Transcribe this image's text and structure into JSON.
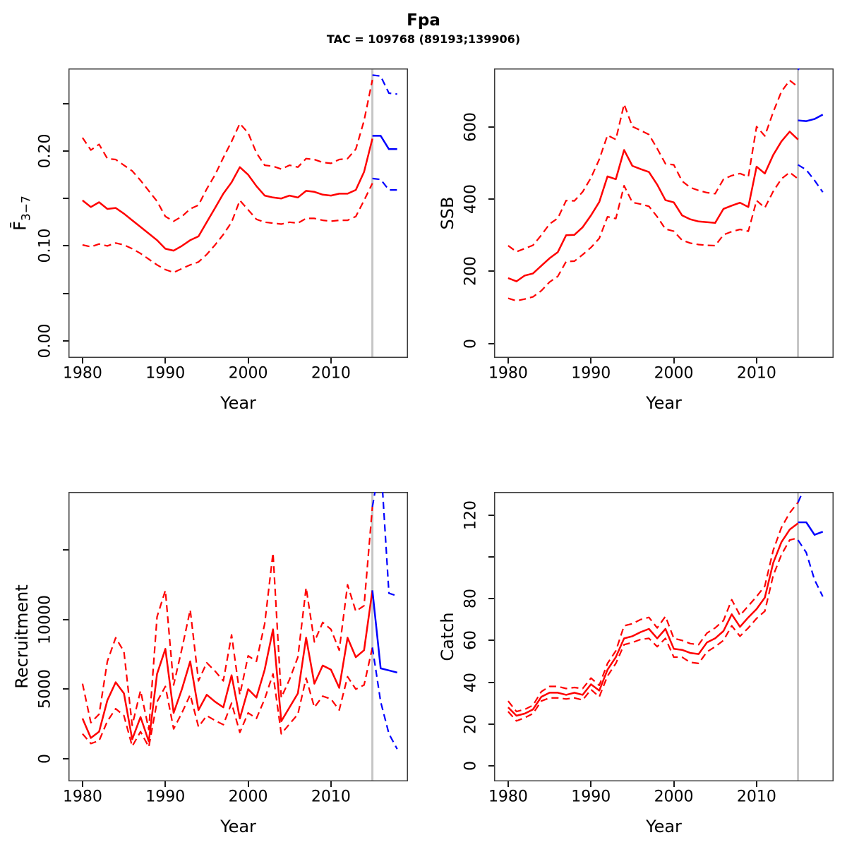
{
  "title": "Fpa",
  "subtitle": "TAC = 109768 (89193;139906)",
  "x_axis_label": "Year",
  "forecast_start_year": 2015,
  "colors": {
    "median": "#ff0000",
    "ci": "#ff0000",
    "forecast": "#0000ff",
    "vline": "#c6c6c6",
    "box": "#3c3c3c",
    "tick": "#1a1a1a"
  },
  "chart_data": [
    {
      "type": "line",
      "name": "fbar",
      "ylabel": "F̄",
      "ylabel_sub": "3−7",
      "xlabel": "Year",
      "xlim": [
        1978.3,
        2019.3
      ],
      "ylim": [
        -0.018,
        0.287
      ],
      "grid": false,
      "legend": false,
      "vline_x": 2015,
      "xticks": [
        {
          "v": 1980,
          "label": "1980"
        },
        {
          "v": 1990,
          "label": "1990"
        },
        {
          "v": 2000,
          "label": "2000"
        },
        {
          "v": 2010,
          "label": "2010"
        }
      ],
      "yticks": [
        {
          "v": 0,
          "label": "0.00"
        },
        {
          "v": 0.05,
          "label": ""
        },
        {
          "v": 0.1,
          "label": "0.10"
        },
        {
          "v": 0.15,
          "label": ""
        },
        {
          "v": 0.2,
          "label": "0.20"
        },
        {
          "v": 0.25,
          "label": ""
        }
      ],
      "years": [
        1980,
        1981,
        1982,
        1983,
        1984,
        1985,
        1986,
        1987,
        1988,
        1989,
        1990,
        1991,
        1992,
        1993,
        1994,
        1995,
        1996,
        1997,
        1998,
        1999,
        2000,
        2001,
        2002,
        2003,
        2004,
        2005,
        2006,
        2007,
        2008,
        2009,
        2010,
        2011,
        2012,
        2013,
        2014,
        2015
      ],
      "forecast_years": [
        2015,
        2016,
        2017,
        2018
      ],
      "series": [
        {
          "name": "ci-upper",
          "phase": "hist",
          "style": "dashed",
          "color": "ci",
          "values": [
            0.214,
            0.201,
            0.207,
            0.192,
            0.191,
            0.185,
            0.179,
            0.169,
            0.158,
            0.147,
            0.131,
            0.126,
            0.131,
            0.139,
            0.143,
            0.16,
            0.175,
            0.193,
            0.21,
            0.229,
            0.219,
            0.198,
            0.185,
            0.184,
            0.181,
            0.185,
            0.183,
            0.192,
            0.191,
            0.188,
            0.187,
            0.191,
            0.192,
            0.202,
            0.232,
            0.275
          ]
        },
        {
          "name": "ci-lower",
          "phase": "hist",
          "style": "dashed",
          "color": "ci",
          "values": [
            0.101,
            0.099,
            0.102,
            0.1,
            0.103,
            0.101,
            0.097,
            0.092,
            0.086,
            0.08,
            0.075,
            0.072,
            0.076,
            0.08,
            0.083,
            0.091,
            0.101,
            0.112,
            0.125,
            0.148,
            0.138,
            0.128,
            0.125,
            0.124,
            0.123,
            0.125,
            0.124,
            0.129,
            0.129,
            0.127,
            0.126,
            0.127,
            0.127,
            0.131,
            0.148,
            0.166
          ]
        },
        {
          "name": "median",
          "phase": "hist",
          "style": "solid",
          "color": "median",
          "values": [
            0.148,
            0.141,
            0.146,
            0.139,
            0.14,
            0.134,
            0.127,
            0.12,
            0.113,
            0.106,
            0.097,
            0.095,
            0.1,
            0.106,
            0.11,
            0.125,
            0.14,
            0.155,
            0.167,
            0.183,
            0.175,
            0.163,
            0.153,
            0.151,
            0.15,
            0.153,
            0.151,
            0.158,
            0.157,
            0.154,
            0.153,
            0.155,
            0.155,
            0.159,
            0.178,
            0.213
          ]
        },
        {
          "name": "forecast-ci-upper",
          "phase": "forecast",
          "style": "dashed",
          "color": "forecast",
          "values": [
            0.28,
            0.279,
            0.261,
            0.26
          ]
        },
        {
          "name": "forecast-ci-lower",
          "phase": "forecast",
          "style": "dashed",
          "color": "forecast",
          "values": [
            0.171,
            0.17,
            0.159,
            0.159
          ]
        },
        {
          "name": "forecast-median",
          "phase": "forecast",
          "style": "solid",
          "color": "forecast",
          "values": [
            0.216,
            0.216,
            0.202,
            0.202
          ]
        }
      ]
    },
    {
      "type": "line",
      "name": "ssb",
      "ylabel": "SSB",
      "ylabel_sub": "",
      "xlabel": "Year",
      "xlim": [
        1978.3,
        2019.3
      ],
      "ylim": [
        -40,
        762
      ],
      "grid": false,
      "legend": false,
      "vline_x": 2015,
      "xticks": [
        {
          "v": 1980,
          "label": "1980"
        },
        {
          "v": 1990,
          "label": "1990"
        },
        {
          "v": 2000,
          "label": "2000"
        },
        {
          "v": 2010,
          "label": "2010"
        }
      ],
      "yticks": [
        {
          "v": 0,
          "label": "0"
        },
        {
          "v": 200,
          "label": "200"
        },
        {
          "v": 400,
          "label": "400"
        },
        {
          "v": 600,
          "label": "600"
        }
      ],
      "years": [
        1980,
        1981,
        1982,
        1983,
        1984,
        1985,
        1986,
        1987,
        1988,
        1989,
        1990,
        1991,
        1992,
        1993,
        1994,
        1995,
        1996,
        1997,
        1998,
        1999,
        2000,
        2001,
        2002,
        2003,
        2004,
        2005,
        2006,
        2007,
        2008,
        2009,
        2010,
        2011,
        2012,
        2013,
        2014,
        2015
      ],
      "forecast_years": [
        2015,
        2016,
        2017,
        2018
      ],
      "series": [
        {
          "name": "ci-upper",
          "phase": "hist",
          "style": "dashed",
          "color": "ci",
          "values": [
            271,
            254,
            263,
            272,
            300,
            331,
            347,
            396,
            395,
            420,
            459,
            510,
            577,
            565,
            663,
            601,
            590,
            579,
            540,
            498,
            495,
            450,
            432,
            424,
            418,
            415,
            455,
            465,
            471,
            462,
            601,
            575,
            641,
            698,
            729,
            711
          ]
        },
        {
          "name": "ci-lower",
          "phase": "hist",
          "style": "dashed",
          "color": "ci",
          "values": [
            125,
            118,
            123,
            129,
            146,
            170,
            186,
            227,
            228,
            246,
            266,
            291,
            351,
            346,
            437,
            391,
            386,
            380,
            351,
            317,
            311,
            286,
            278,
            274,
            272,
            271,
            301,
            310,
            316,
            311,
            396,
            376,
            421,
            456,
            474,
            456
          ]
        },
        {
          "name": "median",
          "phase": "hist",
          "style": "solid",
          "color": "median",
          "values": [
            181,
            172,
            188,
            194,
            215,
            236,
            253,
            300,
            301,
            322,
            355,
            392,
            463,
            455,
            536,
            492,
            483,
            475,
            440,
            397,
            391,
            355,
            344,
            338,
            336,
            334,
            373,
            382,
            390,
            378,
            490,
            471,
            522,
            560,
            587,
            565
          ]
        },
        {
          "name": "forecast-ci-upper",
          "phase": "forecast",
          "style": "dashed",
          "color": "forecast",
          "values": [
            758,
            790,
            810,
            820
          ]
        },
        {
          "name": "forecast-ci-lower",
          "phase": "forecast",
          "style": "dashed",
          "color": "forecast",
          "values": [
            495,
            481,
            452,
            419
          ]
        },
        {
          "name": "forecast-median",
          "phase": "forecast",
          "style": "solid",
          "color": "forecast",
          "values": [
            618,
            616,
            622,
            634
          ]
        }
      ]
    },
    {
      "type": "line",
      "name": "recruitment",
      "ylabel": "Recruitment",
      "ylabel_sub": "",
      "xlabel": "Year",
      "xlim": [
        1978.3,
        2019.3
      ],
      "ylim": [
        -1620,
        19170
      ],
      "grid": false,
      "legend": false,
      "vline_x": 2015,
      "xticks": [
        {
          "v": 1980,
          "label": "1980"
        },
        {
          "v": 1990,
          "label": "1990"
        },
        {
          "v": 2000,
          "label": "2000"
        },
        {
          "v": 2010,
          "label": "2010"
        }
      ],
      "yticks": [
        {
          "v": 0,
          "label": "0"
        },
        {
          "v": 5000,
          "label": "5000"
        },
        {
          "v": 10000,
          "label": "10000"
        },
        {
          "v": 15000,
          "label": ""
        }
      ],
      "years": [
        1980,
        1981,
        1982,
        1983,
        1984,
        1985,
        1986,
        1987,
        1988,
        1989,
        1990,
        1991,
        1992,
        1993,
        1994,
        1995,
        1996,
        1997,
        1998,
        1999,
        2000,
        2001,
        2002,
        2003,
        2004,
        2005,
        2006,
        2007,
        2008,
        2009,
        2010,
        2011,
        2012,
        2013,
        2014,
        2015
      ],
      "forecast_years": [
        2015,
        2016,
        2017,
        2018
      ],
      "series": [
        {
          "name": "ci-upper",
          "phase": "hist",
          "style": "dashed",
          "color": "ci",
          "values": [
            5400,
            2600,
            3200,
            7000,
            8700,
            7700,
            2400,
            4900,
            2100,
            10200,
            12100,
            5300,
            7900,
            10700,
            5600,
            6900,
            6300,
            5600,
            8900,
            4600,
            7400,
            7000,
            9700,
            14800,
            4400,
            5700,
            7300,
            12300,
            8400,
            9800,
            9300,
            7800,
            12500,
            10600,
            11000,
            18100
          ]
        },
        {
          "name": "ci-lower",
          "phase": "hist",
          "style": "dashed",
          "color": "ci",
          "values": [
            1800,
            1100,
            1300,
            2700,
            3600,
            3100,
            900,
            1950,
            850,
            4100,
            5200,
            2150,
            3300,
            4600,
            2300,
            3100,
            2750,
            2450,
            4000,
            1900,
            3300,
            2900,
            4300,
            6100,
            1800,
            2500,
            3200,
            5800,
            3700,
            4500,
            4300,
            3500,
            5900,
            5000,
            5300,
            8000
          ]
        },
        {
          "name": "median",
          "phase": "hist",
          "style": "solid",
          "color": "median",
          "values": [
            2900,
            1500,
            1950,
            4200,
            5500,
            4700,
            1400,
            3000,
            1250,
            6100,
            7900,
            3300,
            5000,
            7000,
            3500,
            4600,
            4100,
            3700,
            6000,
            2900,
            5000,
            4400,
            6400,
            9300,
            2700,
            3700,
            4700,
            8700,
            5400,
            6700,
            6400,
            5100,
            8700,
            7300,
            7800,
            12100
          ]
        },
        {
          "name": "forecast-ci-upper",
          "phase": "forecast",
          "style": "dashed",
          "color": "forecast",
          "values": [
            18100,
            21500,
            11900,
            11700
          ]
        },
        {
          "name": "forecast-ci-lower",
          "phase": "forecast",
          "style": "dashed",
          "color": "forecast",
          "values": [
            8000,
            4100,
            1800,
            700
          ]
        },
        {
          "name": "forecast-median",
          "phase": "forecast",
          "style": "solid",
          "color": "forecast",
          "values": [
            12100,
            6500,
            6350,
            6200
          ]
        }
      ]
    },
    {
      "type": "line",
      "name": "catch",
      "ylabel": "Catch",
      "ylabel_sub": "",
      "xlabel": "Year",
      "xlim": [
        1978.3,
        2019.3
      ],
      "ylim": [
        -7.4,
        131
      ],
      "grid": false,
      "legend": false,
      "vline_x": 2015,
      "xticks": [
        {
          "v": 1980,
          "label": "1980"
        },
        {
          "v": 1990,
          "label": "1990"
        },
        {
          "v": 2000,
          "label": "2000"
        },
        {
          "v": 2010,
          "label": "2010"
        }
      ],
      "yticks": [
        {
          "v": 0,
          "label": "0"
        },
        {
          "v": 20,
          "label": "20"
        },
        {
          "v": 40,
          "label": "40"
        },
        {
          "v": 60,
          "label": "60"
        },
        {
          "v": 80,
          "label": "80"
        },
        {
          "v": 100,
          "label": ""
        },
        {
          "v": 120,
          "label": "120"
        }
      ],
      "years": [
        1980,
        1981,
        1982,
        1983,
        1984,
        1985,
        1986,
        1987,
        1988,
        1989,
        1990,
        1991,
        1992,
        1993,
        1994,
        1995,
        1996,
        1997,
        1998,
        1999,
        2000,
        2001,
        2002,
        2003,
        2004,
        2005,
        2006,
        2007,
        2008,
        2009,
        2010,
        2011,
        2012,
        2013,
        2014,
        2015
      ],
      "forecast_years": [
        2015,
        2016,
        2017,
        2018
      ],
      "series": [
        {
          "name": "ci-upper",
          "phase": "hist",
          "style": "dashed",
          "color": "ci",
          "values": [
            31,
            26,
            27,
            29,
            35.5,
            38,
            38,
            37,
            37.5,
            37,
            42,
            38.5,
            49,
            55,
            67,
            68,
            70,
            71,
            66,
            71.5,
            61,
            60,
            58.5,
            58,
            63.5,
            66,
            69.5,
            79.5,
            72,
            76.5,
            81,
            86,
            103,
            114,
            121,
            126
          ]
        },
        {
          "name": "ci-lower",
          "phase": "hist",
          "style": "dashed",
          "color": "ci",
          "values": [
            26,
            21.5,
            23,
            25,
            31,
            32.5,
            32.5,
            32,
            32.5,
            31.5,
            36.5,
            33,
            43,
            49,
            58,
            59,
            60.5,
            61,
            57,
            61,
            52,
            52,
            49.5,
            49,
            54.5,
            57,
            60,
            67,
            62,
            66,
            70.5,
            74,
            91,
            101,
            108,
            109
          ]
        },
        {
          "name": "median",
          "phase": "hist",
          "style": "solid",
          "color": "median",
          "values": [
            28,
            24,
            25,
            27,
            33,
            35,
            35,
            34,
            35,
            34,
            39,
            36,
            46,
            52,
            61,
            62,
            64,
            65.5,
            61,
            65.5,
            56,
            55.5,
            54,
            53.5,
            59,
            61,
            64.5,
            72.5,
            66.5,
            71,
            75,
            80.5,
            97,
            107,
            113,
            116
          ]
        },
        {
          "name": "forecast-ci-upper",
          "phase": "forecast",
          "style": "dashed",
          "color": "forecast",
          "values": [
            126,
            135,
            145,
            145
          ]
        },
        {
          "name": "forecast-ci-lower",
          "phase": "forecast",
          "style": "dashed",
          "color": "forecast",
          "values": [
            108,
            102,
            89,
            81
          ]
        },
        {
          "name": "forecast-median",
          "phase": "forecast",
          "style": "solid",
          "color": "forecast",
          "values": [
            116.5,
            116.5,
            110.5,
            112
          ]
        }
      ]
    }
  ]
}
